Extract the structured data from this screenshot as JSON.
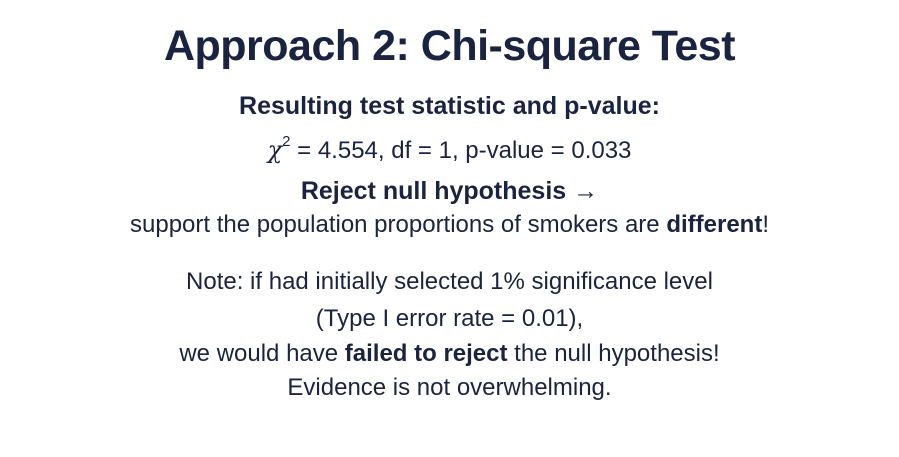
{
  "title": "Approach 2: Chi-square Test",
  "subhead": "Resulting test statistic and p-value:",
  "statistic": {
    "symbol": "χ",
    "exponent": "2",
    "rest": " = 4.554, df = 1, p-value = 0.033"
  },
  "conclusion": {
    "reject_text": "Reject null hypothesis",
    "arrow": "→",
    "support_prefix": "support the population proportions of smokers are ",
    "support_emphasis": "different",
    "support_suffix": "!"
  },
  "note": {
    "line1": "Note: if had initially selected 1% significance level",
    "line2": "(Type I error rate = 0.01),",
    "line3_prefix": "we would have ",
    "line3_emphasis": "failed to reject",
    "line3_suffix": " the null hypothesis!",
    "line4": "Evidence is not overwhelming."
  }
}
